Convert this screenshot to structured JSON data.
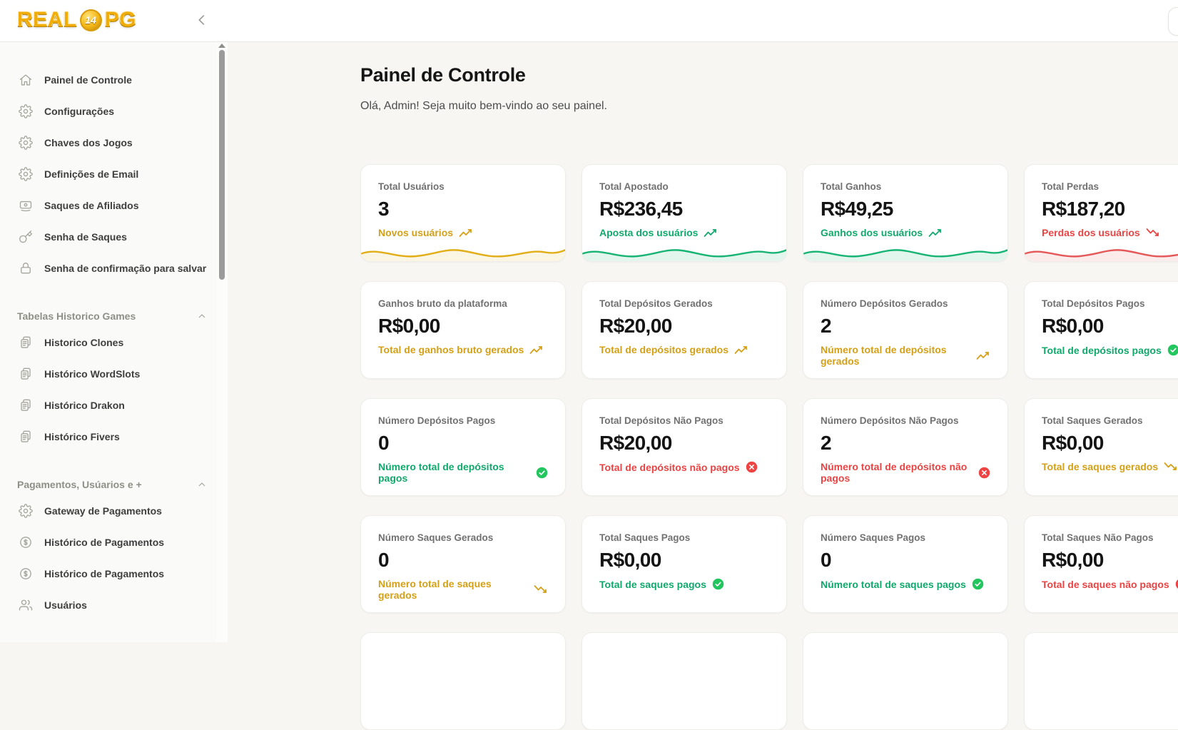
{
  "brand": {
    "logo_prefix": "REAL",
    "logo_coin": "14",
    "logo_suffix": "PG"
  },
  "header": {
    "collapse_icon": "chevron-left"
  },
  "sidebar": {
    "groups": [
      {
        "header": null,
        "items": [
          {
            "label": "Painel de Controle",
            "icon": "home"
          },
          {
            "label": "Configurações",
            "icon": "gear"
          },
          {
            "label": "Chaves dos Jogos",
            "icon": "gear"
          },
          {
            "label": "Definições de Email",
            "icon": "gear"
          },
          {
            "label": "Saques de Afiliados",
            "icon": "banknote"
          },
          {
            "label": "Senha de Saques",
            "icon": "key"
          },
          {
            "label": "Senha de confirmação para salvar",
            "icon": "lock"
          }
        ]
      },
      {
        "header": "Tabelas Historico Games",
        "items": [
          {
            "label": "Historico Clones",
            "icon": "clipboard"
          },
          {
            "label": "Histórico WordSlots",
            "icon": "clipboard"
          },
          {
            "label": "Histórico Drakon",
            "icon": "clipboard"
          },
          {
            "label": "Histórico Fivers",
            "icon": "clipboard"
          }
        ]
      },
      {
        "header": "Pagamentos, Usúarios e +",
        "items": [
          {
            "label": "Gateway de Pagamentos",
            "icon": "gear"
          },
          {
            "label": "Histórico de Pagamentos",
            "icon": "dollar"
          },
          {
            "label": "Histórico de Pagamentos",
            "icon": "dollar"
          },
          {
            "label": "Usuários",
            "icon": "users"
          }
        ]
      }
    ]
  },
  "main": {
    "title": "Painel de Controle",
    "subtitle": "Olá, Admin! Seja muito bem-vindo ao seu painel.",
    "partial_cards": 4,
    "cards": [
      {
        "label": "Total Usuários",
        "value": "3",
        "caption": "Novos usuários",
        "icon": "trend-up",
        "accent": "yellow",
        "sparkline": true
      },
      {
        "label": "Total Apostado",
        "value": "R$236,45",
        "caption": "Aposta dos usuários",
        "icon": "trend-up",
        "accent": "green",
        "sparkline": true
      },
      {
        "label": "Total Ganhos",
        "value": "R$49,25",
        "caption": "Ganhos dos usuários",
        "icon": "trend-up",
        "accent": "green",
        "sparkline": true
      },
      {
        "label": "Total Perdas",
        "value": "R$187,20",
        "caption": "Perdas dos usuários",
        "icon": "trend-down",
        "accent": "red",
        "sparkline": true
      },
      {
        "label": "Ganhos bruto da plataforma",
        "value": "R$0,00",
        "caption": "Total de ganhos bruto gerados",
        "icon": "trend-up",
        "accent": "yellow",
        "sparkline": false
      },
      {
        "label": "Total Depósitos Gerados",
        "value": "R$20,00",
        "caption": "Total de depósitos gerados",
        "icon": "trend-up",
        "accent": "yellow",
        "sparkline": false
      },
      {
        "label": "Número Depósitos Gerados",
        "value": "2",
        "caption": "Número total de depósitos gerados",
        "icon": "trend-up",
        "accent": "yellow",
        "sparkline": false
      },
      {
        "label": "Total Depósitos Pagos",
        "value": "R$0,00",
        "caption": "Total de depósitos pagos",
        "icon": "check",
        "accent": "green",
        "sparkline": false
      },
      {
        "label": "Número Depósitos Pagos",
        "value": "0",
        "caption": "Número total de depósitos pagos",
        "icon": "check",
        "accent": "green",
        "sparkline": false
      },
      {
        "label": "Total Depósitos Não Pagos",
        "value": "R$20,00",
        "caption": "Total de depósitos não pagos",
        "icon": "cross",
        "accent": "red",
        "sparkline": false
      },
      {
        "label": "Número Depósitos Não Pagos",
        "value": "2",
        "caption": "Número total de depósitos não pagos",
        "icon": "cross",
        "accent": "red",
        "sparkline": false
      },
      {
        "label": "Total Saques Gerados",
        "value": "R$0,00",
        "caption": "Total de saques gerados",
        "icon": "trend-down",
        "accent": "yellow",
        "sparkline": false
      },
      {
        "label": "Número Saques Gerados",
        "value": "0",
        "caption": "Número total de saques gerados",
        "icon": "trend-down",
        "accent": "yellow",
        "sparkline": false
      },
      {
        "label": "Total Saques Pagos",
        "value": "R$0,00",
        "caption": "Total de saques pagos",
        "icon": "check",
        "accent": "green",
        "sparkline": false
      },
      {
        "label": "Número Saques Pagos",
        "value": "0",
        "caption": "Número total de saques pagos",
        "icon": "check",
        "accent": "green",
        "sparkline": false
      },
      {
        "label": "Total Saques Não Pagos",
        "value": "R$0,00",
        "caption": "Total de saques não pagos",
        "icon": "cross",
        "accent": "red",
        "sparkline": false
      }
    ]
  },
  "colors": {
    "yellow": "#d4a017",
    "green": "#10a96c",
    "red": "#e94444",
    "check_fill": "#22c55e",
    "cross_fill": "#ef4444",
    "logo_gold": "#f0ad0a",
    "spark_yellow": "#e2ae17",
    "spark_green": "#17b473",
    "spark_red": "#e45858"
  }
}
